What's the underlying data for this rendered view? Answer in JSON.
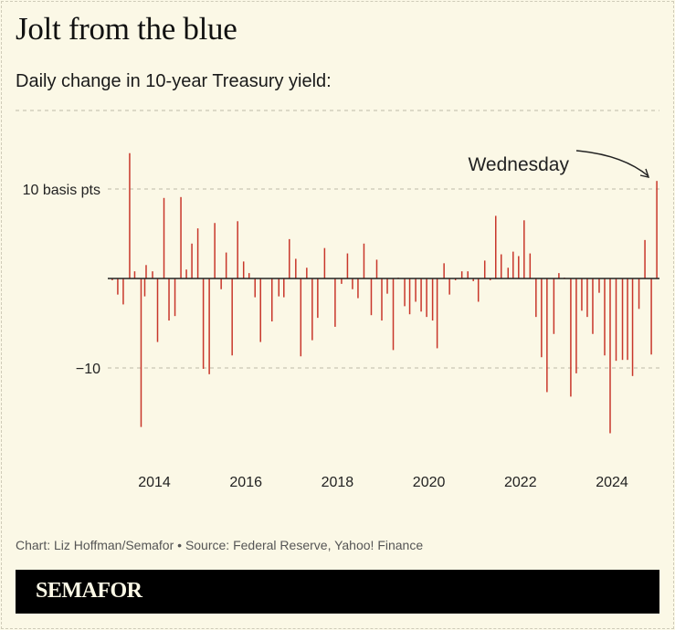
{
  "title": "Jolt from the blue",
  "subtitle": "Daily change in 10-year Treasury yield:",
  "source": "Chart: Liz Hoffman/Semafor • Source: Federal Reserve, Yahoo! Finance",
  "brand": "SEMAFOR",
  "colors": {
    "bar": "#c8362a",
    "background": "#fbf8e6",
    "zero_line": "#222222",
    "grid": "#bdbaa8"
  },
  "chart_data": {
    "type": "bar",
    "title": "Jolt from the blue",
    "subtitle": "Daily change in 10-year Treasury yield:",
    "ylim": [
      -18,
      18
    ],
    "xlim": [
      2012.98,
      2025.04
    ],
    "grid": true,
    "y_ticks": [
      {
        "value": 10,
        "label": "10 basis pts"
      },
      {
        "value": -10,
        "label": "−10"
      }
    ],
    "x_ticks": [
      {
        "value": 2014,
        "label": "2014"
      },
      {
        "value": 2016,
        "label": "2016"
      },
      {
        "value": 2018,
        "label": "2018"
      },
      {
        "value": 2020,
        "label": "2020"
      },
      {
        "value": 2022,
        "label": "2022"
      },
      {
        "value": 2024,
        "label": "2024"
      }
    ],
    "annotation": {
      "text": "Wednesday",
      "x": 2024.98,
      "y": 10.9
    },
    "x": [
      2013.08,
      2013.2,
      2013.32,
      2013.46,
      2013.57,
      2013.71,
      2013.79,
      2013.82,
      2013.96,
      2014.07,
      2014.21,
      2014.32,
      2014.45,
      2014.58,
      2014.7,
      2014.82,
      2014.95,
      2015.07,
      2015.2,
      2015.32,
      2015.46,
      2015.57,
      2015.7,
      2015.82,
      2015.95,
      2016.07,
      2016.2,
      2016.32,
      2016.57,
      2016.72,
      2016.83,
      2016.95,
      2017.09,
      2017.2,
      2017.33,
      2017.45,
      2017.57,
      2017.72,
      2017.95,
      2018.09,
      2018.22,
      2018.33,
      2018.45,
      2018.58,
      2018.74,
      2018.86,
      2018.97,
      2019.09,
      2019.22,
      2019.33,
      2019.47,
      2019.58,
      2019.71,
      2019.83,
      2019.95,
      2020.08,
      2020.18,
      2020.33,
      2020.45,
      2020.58,
      2020.72,
      2020.85,
      2020.97,
      2021.08,
      2021.22,
      2021.34,
      2021.46,
      2021.58,
      2021.73,
      2021.84,
      2021.96,
      2022.08,
      2022.21,
      2022.34,
      2022.46,
      2022.58,
      2022.73,
      2022.84,
      2022.96,
      2023.1,
      2023.22,
      2023.34,
      2023.46,
      2023.58,
      2023.72,
      2023.84,
      2023.96,
      2024.09,
      2024.23,
      2024.34,
      2024.45,
      2024.59,
      2024.72,
      2024.86,
      2024.98
    ],
    "values": [
      -0.2,
      -1.8,
      -2.9,
      14.0,
      0.8,
      -16.6,
      -2.0,
      1.5,
      0.8,
      -7.1,
      9.0,
      -4.7,
      -4.2,
      9.1,
      1.0,
      3.9,
      5.6,
      -10.1,
      -10.7,
      6.2,
      -1.2,
      2.9,
      -8.6,
      6.4,
      1.9,
      0.6,
      -2.1,
      -7.1,
      -4.8,
      -2.0,
      -2.1,
      4.4,
      2.2,
      -8.7,
      1.2,
      -6.9,
      -4.4,
      3.4,
      -5.4,
      -0.6,
      2.8,
      -1.2,
      -2.2,
      3.9,
      -4.1,
      2.1,
      -4.7,
      -1.7,
      -8.0,
      0.1,
      -3.1,
      -4.0,
      -2.6,
      -3.7,
      -4.3,
      -4.7,
      -7.8,
      1.7,
      -1.8,
      -0.2,
      0.8,
      0.8,
      -0.3,
      -2.6,
      2.0,
      -0.2,
      7.0,
      2.7,
      1.2,
      3.0,
      2.5,
      6.5,
      2.8,
      -4.3,
      -8.8,
      -12.7,
      -6.2,
      0.6,
      0.1,
      -13.2,
      -10.6,
      -3.6,
      -4.3,
      -6.2,
      -1.6,
      -8.6,
      -17.3,
      -9.2,
      -9.1,
      -9.1,
      -10.9,
      -3.4,
      4.3,
      -8.5,
      10.9
    ]
  }
}
